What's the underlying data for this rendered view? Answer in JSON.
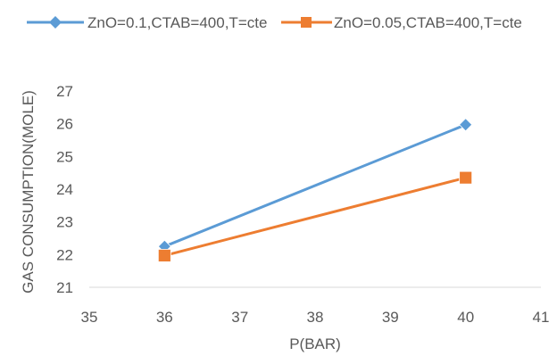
{
  "chart_data": {
    "type": "line",
    "xlabel": "P(BAR)",
    "ylabel": "GAS CONSUMPTION(MOLE)",
    "xlim": [
      35,
      41
    ],
    "ylim": [
      21,
      27
    ],
    "x_ticks": [
      "35",
      "36",
      "37",
      "38",
      "39",
      "40",
      "41"
    ],
    "y_ticks": [
      "21",
      "22",
      "23",
      "24",
      "25",
      "26",
      "27"
    ],
    "grid": false,
    "legend_position": "top",
    "series": [
      {
        "name": "ZnO=0.1,CTAB=400,T=cte",
        "color": "#5b9bd5",
        "marker": "diamond",
        "x": [
          36,
          40
        ],
        "y": [
          22.25,
          25.97
        ]
      },
      {
        "name": "ZnO=0.05,CTAB=400,T=cte",
        "color": "#ed7d31",
        "marker": "square",
        "x": [
          36,
          40
        ],
        "y": [
          21.97,
          24.35
        ]
      }
    ]
  }
}
